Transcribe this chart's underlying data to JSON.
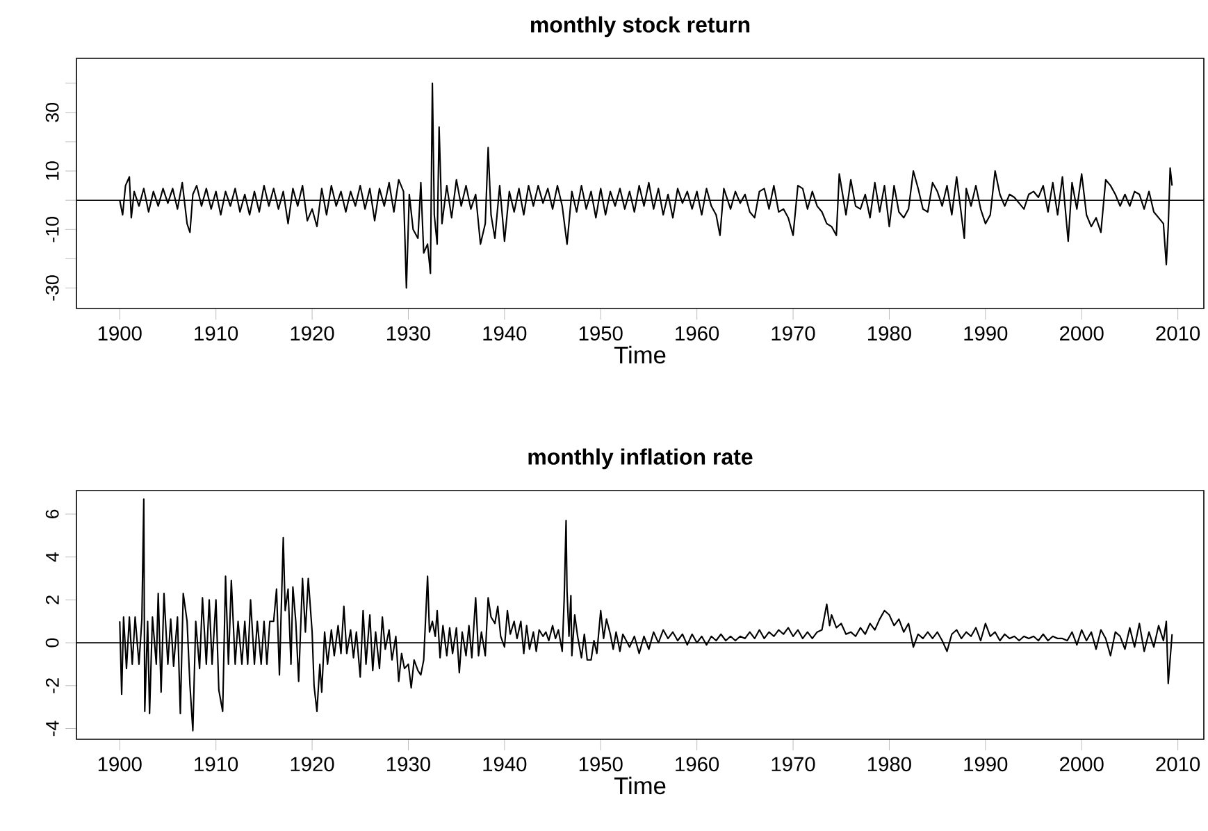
{
  "chart_data": [
    {
      "type": "line",
      "title": "monthly stock return",
      "xlabel": "Time",
      "color": "#000000",
      "x": [
        1900,
        1900.3,
        1900.6,
        1901,
        1901.2,
        1901.5,
        1902,
        1902.5,
        1903,
        1903.5,
        1904,
        1904.5,
        1905,
        1905.5,
        1906,
        1906.5,
        1907,
        1907.3,
        1907.6,
        1908,
        1908.5,
        1909,
        1909.5,
        1910,
        1910.5,
        1911,
        1911.5,
        1912,
        1912.5,
        1913,
        1913.5,
        1914,
        1914.5,
        1915,
        1915.5,
        1916,
        1916.5,
        1917,
        1917.5,
        1918,
        1918.5,
        1919,
        1919.5,
        1920,
        1920.5,
        1921,
        1921.5,
        1922,
        1922.5,
        1923,
        1923.5,
        1924,
        1924.5,
        1925,
        1925.5,
        1926,
        1926.5,
        1927,
        1927.5,
        1928,
        1928.5,
        1929,
        1929.5,
        1929.8,
        1930.1,
        1930.5,
        1931,
        1931.3,
        1931.6,
        1932,
        1932.3,
        1932.5,
        1932.7,
        1933,
        1933.2,
        1933.5,
        1934,
        1934.5,
        1935,
        1935.5,
        1936,
        1936.5,
        1937,
        1937.5,
        1938,
        1938.3,
        1938.6,
        1939,
        1939.5,
        1940,
        1940.5,
        1941,
        1941.5,
        1942,
        1942.5,
        1943,
        1943.5,
        1944,
        1944.5,
        1945,
        1945.5,
        1946,
        1946.5,
        1947,
        1947.5,
        1948,
        1948.5,
        1949,
        1949.5,
        1950,
        1950.5,
        1951,
        1951.5,
        1952,
        1952.5,
        1953,
        1953.5,
        1954,
        1954.5,
        1955,
        1955.5,
        1956,
        1956.5,
        1957,
        1957.5,
        1958,
        1958.5,
        1959,
        1959.5,
        1960,
        1960.5,
        1961,
        1961.5,
        1962,
        1962.4,
        1962.8,
        1963.5,
        1964,
        1964.5,
        1965,
        1965.5,
        1966,
        1966.5,
        1967,
        1967.5,
        1968,
        1968.5,
        1969,
        1969.5,
        1970,
        1970.5,
        1971,
        1971.5,
        1972,
        1972.5,
        1973,
        1973.5,
        1974,
        1974.5,
        1974.8,
        1975.5,
        1976,
        1976.5,
        1977,
        1977.5,
        1978,
        1978.5,
        1979,
        1979.5,
        1980,
        1980.5,
        1981,
        1981.5,
        1982,
        1982.5,
        1983,
        1983.5,
        1984,
        1984.5,
        1985,
        1985.5,
        1986,
        1986.5,
        1987,
        1987.8,
        1988,
        1988.5,
        1989,
        1989.5,
        1990,
        1990.5,
        1991,
        1991.5,
        1992,
        1992.5,
        1993,
        1993.5,
        1994,
        1994.5,
        1995,
        1995.5,
        1996,
        1996.5,
        1997,
        1997.5,
        1998,
        1998.6,
        1999,
        1999.5,
        2000,
        2000.5,
        2001,
        2001.5,
        2002,
        2002.5,
        2003,
        2003.5,
        2004,
        2004.5,
        2005,
        2005.5,
        2006,
        2006.5,
        2007,
        2007.5,
        2008,
        2008.5,
        2008.8,
        2009,
        2009.2,
        2009.4
      ],
      "values": [
        0,
        -5,
        5,
        8,
        -6,
        3,
        -2,
        4,
        -4,
        3,
        -2,
        4,
        -1,
        4,
        -3,
        6,
        -8,
        -11,
        2,
        5,
        -2,
        4,
        -3,
        3,
        -5,
        3,
        -2,
        4,
        -4,
        2,
        -5,
        3,
        -4,
        5,
        -2,
        4,
        -3,
        3,
        -8,
        4,
        -2,
        5,
        -7,
        -3,
        -9,
        4,
        -5,
        5,
        -2,
        3,
        -4,
        3,
        -2,
        5,
        -3,
        4,
        -7,
        4,
        -2,
        6,
        -4,
        7,
        3,
        -30,
        2,
        -10,
        -13,
        6,
        -18,
        -15,
        -25,
        40,
        -5,
        -15,
        25,
        -8,
        5,
        -6,
        7,
        -2,
        5,
        -3,
        2,
        -15,
        -8,
        18,
        -5,
        -13,
        5,
        -14,
        3,
        -4,
        4,
        -5,
        5,
        -2,
        5,
        -1,
        4,
        -3,
        5,
        -2,
        -15,
        3,
        -4,
        5,
        -3,
        3,
        -6,
        4,
        -5,
        3,
        -2,
        4,
        -3,
        3,
        -4,
        5,
        -2,
        6,
        -3,
        4,
        -5,
        2,
        -6,
        4,
        -1,
        3,
        -3,
        3,
        -5,
        4,
        -2,
        -5,
        -12,
        4,
        -3,
        3,
        -1,
        2,
        -4,
        -6,
        3,
        4,
        -3,
        5,
        -4,
        -3,
        -6,
        -12,
        5,
        4,
        -3,
        3,
        -2,
        -4,
        -8,
        -9,
        -12,
        9,
        -5,
        7,
        -2,
        -3,
        2,
        -6,
        6,
        -4,
        5,
        -9,
        5,
        -4,
        -6,
        -3,
        10,
        4,
        -3,
        -4,
        6,
        3,
        -2,
        5,
        -5,
        8,
        -13,
        4,
        -2,
        5,
        -3,
        -8,
        -5,
        10,
        2,
        -2,
        2,
        1,
        -1,
        -3,
        2,
        3,
        1,
        5,
        -4,
        6,
        -5,
        8,
        -14,
        6,
        -3,
        9,
        -5,
        -9,
        -6,
        -11,
        7,
        5,
        2,
        -2,
        2,
        -2,
        3,
        2,
        -3,
        3,
        -4,
        -6,
        -8,
        -22,
        -9,
        11,
        5
      ],
      "xlim": [
        1895.5,
        2012.7
      ],
      "ylim": [
        -37,
        48.5
      ],
      "xticks": [
        1900,
        1910,
        1920,
        1930,
        1940,
        1950,
        1960,
        1970,
        1980,
        1990,
        2000,
        2010
      ],
      "yticks": [
        {
          "value": -30,
          "label": "-30"
        },
        {
          "value": -20,
          "label": null
        },
        {
          "value": -10,
          "label": "-10"
        },
        {
          "value": 0,
          "label": null
        },
        {
          "value": 10,
          "label": "10"
        },
        {
          "value": 20,
          "label": null
        },
        {
          "value": 30,
          "label": "30"
        },
        {
          "value": 40,
          "label": null
        }
      ],
      "ref_lines": [
        {
          "axis": "y",
          "value": 0,
          "color": "#000000"
        }
      ]
    },
    {
      "type": "line",
      "title": "monthly inflation rate",
      "xlabel": "Time",
      "color": "#000000",
      "x": [
        1900,
        1900.2,
        1900.4,
        1900.7,
        1901,
        1901.3,
        1901.6,
        1902,
        1902.3,
        1902.5,
        1902.6,
        1902.9,
        1903.1,
        1903.4,
        1903.8,
        1904,
        1904.3,
        1904.6,
        1905,
        1905.3,
        1905.6,
        1906,
        1906.3,
        1906.6,
        1907,
        1907.3,
        1907.6,
        1907.9,
        1908.3,
        1908.6,
        1909,
        1909.3,
        1909.6,
        1910,
        1910.3,
        1910.7,
        1911,
        1911.3,
        1911.6,
        1912,
        1912.3,
        1912.7,
        1913,
        1913.3,
        1913.6,
        1914,
        1914.3,
        1914.7,
        1915,
        1915.3,
        1915.6,
        1916,
        1916.3,
        1916.6,
        1917,
        1917.2,
        1917.5,
        1917.8,
        1918,
        1918.3,
        1918.6,
        1919,
        1919.3,
        1919.6,
        1920,
        1920.2,
        1920.5,
        1920.8,
        1921,
        1921.3,
        1921.6,
        1922,
        1922.3,
        1922.7,
        1923,
        1923.3,
        1923.6,
        1924,
        1924.3,
        1924.6,
        1925,
        1925.3,
        1925.6,
        1926,
        1926.3,
        1926.6,
        1927,
        1927.3,
        1927.6,
        1928,
        1928.3,
        1928.7,
        1929,
        1929.3,
        1929.6,
        1930,
        1930.3,
        1930.6,
        1931,
        1931.3,
        1931.6,
        1932,
        1932.2,
        1932.5,
        1932.8,
        1933,
        1933.3,
        1933.6,
        1934,
        1934.3,
        1934.6,
        1935,
        1935.3,
        1935.6,
        1936,
        1936.3,
        1936.6,
        1937,
        1937.3,
        1937.6,
        1938,
        1938.3,
        1938.6,
        1939,
        1939.3,
        1939.6,
        1940,
        1940.3,
        1940.6,
        1941,
        1941.3,
        1941.7,
        1942,
        1942.3,
        1942.6,
        1943,
        1943.3,
        1943.6,
        1944,
        1944.3,
        1944.6,
        1945,
        1945.3,
        1945.6,
        1946,
        1946.2,
        1946.4,
        1946.5,
        1946.7,
        1946.9,
        1947,
        1947.3,
        1947.6,
        1948,
        1948.3,
        1948.6,
        1949,
        1949.3,
        1949.6,
        1950,
        1950.3,
        1950.6,
        1951,
        1951.3,
        1951.6,
        1952,
        1952.3,
        1953,
        1953.5,
        1954,
        1954.5,
        1955,
        1955.5,
        1956,
        1956.5,
        1957,
        1957.5,
        1958,
        1958.5,
        1959,
        1959.5,
        1960,
        1960.5,
        1961,
        1961.5,
        1962,
        1962.5,
        1963,
        1963.5,
        1964,
        1964.5,
        1965,
        1965.5,
        1966,
        1966.5,
        1967,
        1967.5,
        1968,
        1968.5,
        1969,
        1969.5,
        1970,
        1970.5,
        1971,
        1971.5,
        1972,
        1972.5,
        1973,
        1973.5,
        1973.8,
        1974,
        1974.5,
        1975,
        1975.5,
        1976,
        1976.5,
        1977,
        1977.5,
        1978,
        1978.5,
        1979,
        1979.5,
        1980,
        1980.5,
        1981,
        1981.5,
        1982,
        1982.5,
        1983,
        1983.5,
        1984,
        1984.5,
        1985,
        1985.5,
        1986,
        1986.5,
        1987,
        1987.5,
        1988,
        1988.5,
        1989,
        1989.5,
        1990,
        1990.5,
        1991,
        1991.5,
        1992,
        1992.5,
        1993,
        1993.5,
        1994,
        1994.5,
        1995,
        1995.5,
        1996,
        1996.5,
        1997,
        1997.5,
        1998,
        1998.5,
        1999,
        1999.5,
        2000,
        2000.5,
        2001,
        2001.5,
        2002,
        2002.5,
        2003,
        2003.5,
        2004,
        2004.5,
        2005,
        2005.5,
        2006,
        2006.5,
        2007,
        2007.5,
        2008,
        2008.5,
        2008.8,
        2009,
        2009.4
      ],
      "values": [
        1,
        -2.4,
        1.2,
        -1.2,
        1.2,
        -1,
        1.2,
        -1,
        1.1,
        6.7,
        -3.2,
        1,
        -3.3,
        1.2,
        -1,
        2.3,
        -2.3,
        2.3,
        -1,
        1.1,
        -1.1,
        1.2,
        -3.3,
        2.3,
        1,
        -2,
        -4.1,
        1,
        -1.2,
        2.1,
        -1,
        2,
        -1,
        2,
        -2.2,
        -3.2,
        3.1,
        -1,
        2.9,
        -1,
        1,
        -1,
        1,
        -1,
        2,
        -1,
        1,
        -1,
        1,
        -1,
        1,
        1,
        2.5,
        -1.5,
        4.9,
        1.5,
        2.5,
        -1,
        2.6,
        1,
        -1.8,
        3,
        0.5,
        3,
        0.5,
        -2,
        -3.2,
        -1,
        -2.3,
        0.5,
        -1,
        0.6,
        -0.6,
        0.8,
        -0.5,
        1.7,
        -0.5,
        0.6,
        -0.7,
        0.5,
        -1.6,
        1.5,
        -1,
        1.3,
        -1.3,
        0.5,
        -1.2,
        1.2,
        -0.3,
        0.6,
        -0.8,
        0.3,
        -1.8,
        -0.5,
        -1.2,
        -1,
        -2.1,
        -0.8,
        -1.3,
        -1.5,
        -0.8,
        3.1,
        0.5,
        1,
        0.3,
        1.5,
        -0.7,
        0.8,
        -0.6,
        0.7,
        -0.5,
        0.7,
        -1.4,
        0.5,
        -0.6,
        0.8,
        -0.7,
        2.1,
        -0.6,
        0.5,
        -0.6,
        2.1,
        1.2,
        0.9,
        1.7,
        0.3,
        -0.2,
        1.5,
        0.4,
        1,
        0.2,
        1,
        -0.5,
        0.8,
        -0.3,
        0.5,
        -0.4,
        0.6,
        0.3,
        0.5,
        0.1,
        0.8,
        0.2,
        0.6,
        -0.4,
        2,
        5.7,
        2.4,
        0.3,
        2.2,
        -0.6,
        1.3,
        0.3,
        -0.7,
        0.4,
        -0.8,
        -0.8,
        0.1,
        -0.5,
        1.5,
        0.2,
        1.1,
        0.4,
        -0.3,
        0.5,
        -0.4,
        0.4,
        -0.2,
        0.3,
        -0.5,
        0.3,
        -0.3,
        0.5,
        0,
        0.6,
        0.2,
        0.5,
        0.1,
        0.4,
        -0.1,
        0.4,
        0,
        0.3,
        -0.1,
        0.3,
        0.1,
        0.4,
        0.1,
        0.3,
        0.1,
        0.3,
        0.2,
        0.5,
        0.2,
        0.6,
        0.2,
        0.5,
        0.3,
        0.6,
        0.4,
        0.7,
        0.3,
        0.6,
        0.2,
        0.5,
        0.2,
        0.5,
        0.6,
        1.8,
        0.8,
        1.3,
        0.7,
        0.9,
        0.4,
        0.5,
        0.3,
        0.7,
        0.4,
        0.9,
        0.6,
        1.1,
        1.5,
        1.3,
        0.8,
        1.1,
        0.5,
        0.9,
        -0.2,
        0.4,
        0.2,
        0.5,
        0.2,
        0.5,
        0.1,
        -0.4,
        0.4,
        0.6,
        0.2,
        0.5,
        0.3,
        0.7,
        0.1,
        0.9,
        0.3,
        0.5,
        0.1,
        0.4,
        0.2,
        0.3,
        0.1,
        0.3,
        0.2,
        0.3,
        0.1,
        0.4,
        0.1,
        0.3,
        0.2,
        0.2,
        0.1,
        0.5,
        -0.1,
        0.6,
        0.1,
        0.5,
        -0.3,
        0.6,
        0.2,
        -0.6,
        0.5,
        0.3,
        -0.3,
        0.7,
        -0.2,
        0.9,
        -0.4,
        0.5,
        -0.2,
        0.8,
        0.1,
        1,
        -1.9,
        0.4
      ],
      "xlim": [
        1895.5,
        2012.7
      ],
      "ylim": [
        -4.5,
        7.1
      ],
      "xticks": [
        1900,
        1910,
        1920,
        1930,
        1940,
        1950,
        1960,
        1970,
        1980,
        1990,
        2000,
        2010
      ],
      "yticks": [
        -4,
        -2,
        0,
        2,
        4,
        6
      ],
      "ref_lines": [
        {
          "axis": "y",
          "value": 0,
          "color": "#000000"
        }
      ]
    }
  ]
}
